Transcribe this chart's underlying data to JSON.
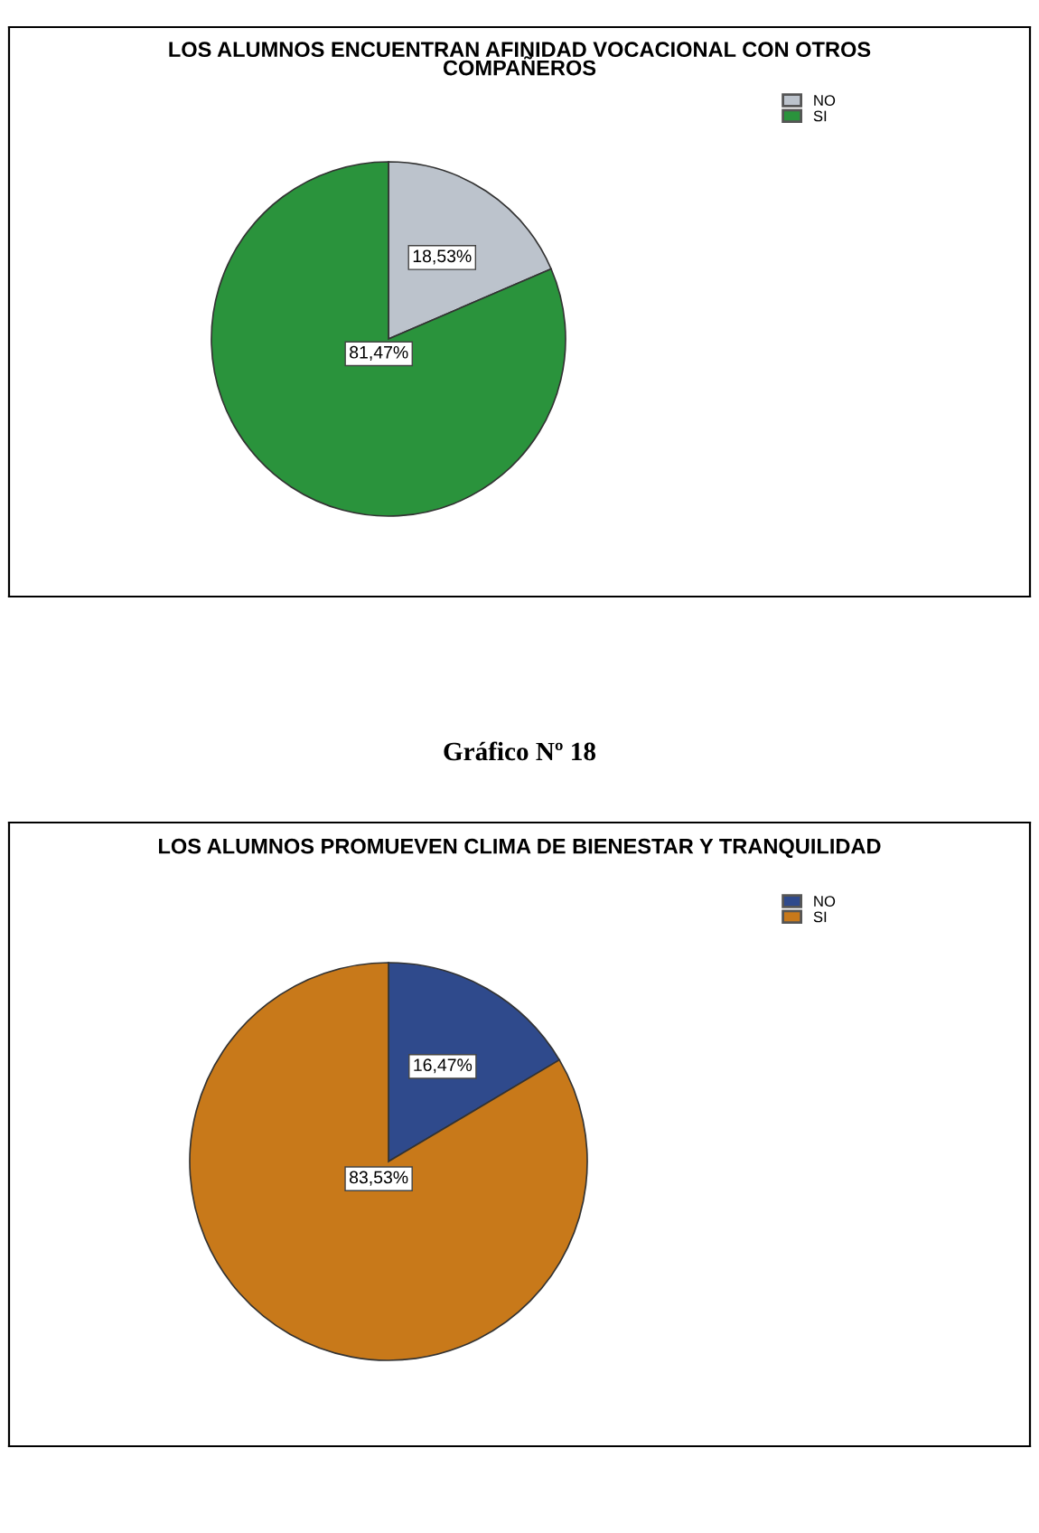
{
  "chart_data": [
    {
      "type": "pie",
      "title": "LOS ALUMNOS ENCUENTRAN AFINIDAD VOCACIONAL CON OTROS\nCOMPAÑEROS",
      "categories": [
        "NO",
        "SI"
      ],
      "values": [
        18.53,
        81.47
      ],
      "colors": [
        "#bcc3cc",
        "#2a933c"
      ],
      "value_labels": [
        "18,53%",
        "81,47%"
      ],
      "legend": "top right"
    },
    {
      "type": "pie",
      "title": "LOS ALUMNOS PROMUEVEN CLIMA DE BIENESTAR Y TRANQUILIDAD",
      "annotations": [
        "Gráfico Nº 18"
      ],
      "categories": [
        "NO",
        "SI"
      ],
      "values": [
        16.47,
        83.53
      ],
      "colors": [
        "#2f4a8c",
        "#c8791a"
      ],
      "value_labels": [
        "16,47%",
        "83,53%"
      ],
      "legend": "top right"
    }
  ]
}
